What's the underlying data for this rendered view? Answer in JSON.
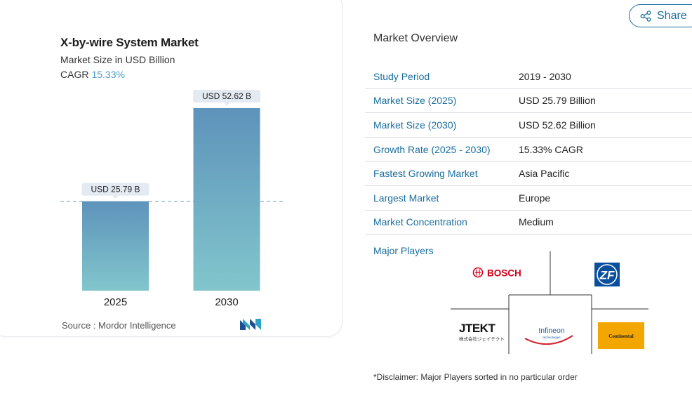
{
  "chart_card": {
    "title": "X-by-wire System Market",
    "subtitle": "Market Size in USD Billion",
    "cagr_label": "CAGR",
    "cagr_value": "15.33%",
    "source": "Source :  Mordor Intelligence"
  },
  "chart_data": {
    "type": "bar",
    "title": "X-by-wire System Market",
    "subtitle": "Market Size in USD Billion",
    "categories": [
      "2025",
      "2030"
    ],
    "values": [
      25.79,
      52.62
    ],
    "value_labels": [
      "USD 25.79 B",
      "USD 52.62 B"
    ],
    "ylim": [
      0,
      52.62
    ],
    "xlabel": "",
    "ylabel": "",
    "reference_line_at": 25.79,
    "grid": false,
    "colors": {
      "bar_top": "#5e93bb",
      "bar_bottom": "#82c6cc",
      "dash": "#7ea6c8",
      "label_bg": "#e3eaf1"
    }
  },
  "share": {
    "label": "Share",
    "icon": "share-icon"
  },
  "overview": {
    "heading": "Market Overview",
    "rows": [
      {
        "key": "Study Period",
        "value": "2019 - 2030"
      },
      {
        "key": "Market Size (2025)",
        "value": "USD 25.79 Billion"
      },
      {
        "key": "Market Size (2030)",
        "value": "USD 52.62 Billion"
      },
      {
        "key": "Growth Rate (2025 - 2030)",
        "value": "15.33% CAGR"
      },
      {
        "key": "Fastest Growing Market",
        "value": "Asia Pacific"
      },
      {
        "key": "Largest Market",
        "value": "Europe"
      },
      {
        "key": "Market Concentration",
        "value": "Medium"
      }
    ]
  },
  "major_players": {
    "label": "Major Players",
    "logos": [
      {
        "name": "BOSCH",
        "icon": "bosch-logo"
      },
      {
        "name": "ZF",
        "icon": "zf-logo"
      },
      {
        "name": "JTEKT",
        "sub": "株式会社ジェイテクト",
        "icon": "jtekt-logo"
      },
      {
        "name": "Infineon",
        "sub": "technologies",
        "icon": "infineon-logo"
      },
      {
        "name": "Continental",
        "icon": "continental-logo"
      }
    ]
  },
  "disclaimer": "*Disclaimer: Major Players sorted in no particular order"
}
